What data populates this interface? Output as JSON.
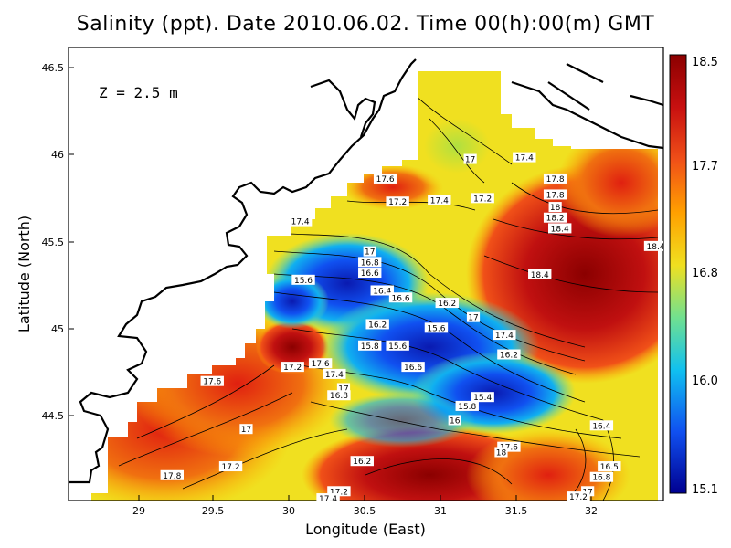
{
  "title": "Salinity (ppt). Date 2010.06.02. Time 00(h):00(m) GMT",
  "depth_label": "Z = 2.5 m",
  "axes": {
    "xlabel": "Longitude (East)",
    "ylabel": "Latitude (North)",
    "xticks": [
      "29",
      "29.5",
      "30",
      "30.5",
      "31",
      "31.5",
      "32"
    ],
    "yticks": [
      "46.5",
      "46",
      "45.5",
      "45",
      "44.5"
    ]
  },
  "colorbar": {
    "labels": [
      "18.5",
      "17.7",
      "16.8",
      "16.0",
      "15.1"
    ],
    "colors": [
      "#8b0000",
      "#e03010",
      "#ffa000",
      "#f0e020",
      "#60e0a0",
      "#10c0f0",
      "#1060f0",
      "#000090"
    ]
  },
  "chart_data": {
    "type": "heatmap",
    "title": "Salinity (ppt). Date 2010.06.02. Time 00(h):00(m) GMT",
    "xlabel": "Longitude (East)",
    "ylabel": "Latitude (North)",
    "xlim": [
      28.6,
      32.45
    ],
    "ylim": [
      44.05,
      46.6
    ],
    "value_range": [
      15.1,
      18.5
    ],
    "contour_labels": [
      {
        "text": "17.4",
        "x": 31.55,
        "y": 45.98
      },
      {
        "text": "17",
        "x": 31.2,
        "y": 45.97
      },
      {
        "text": "17.6",
        "x": 30.65,
        "y": 45.86
      },
      {
        "text": "17.8",
        "x": 31.75,
        "y": 45.86
      },
      {
        "text": "17.2",
        "x": 30.73,
        "y": 45.73
      },
      {
        "text": "17.4",
        "x": 31.0,
        "y": 45.74
      },
      {
        "text": "17.2",
        "x": 31.28,
        "y": 45.75
      },
      {
        "text": "17.8",
        "x": 31.75,
        "y": 45.77
      },
      {
        "text": "18",
        "x": 31.75,
        "y": 45.7
      },
      {
        "text": "18.2",
        "x": 31.75,
        "y": 45.64
      },
      {
        "text": "18.4",
        "x": 31.78,
        "y": 45.58
      },
      {
        "text": "17.4",
        "x": 30.1,
        "y": 45.62
      },
      {
        "text": "17",
        "x": 30.55,
        "y": 45.45
      },
      {
        "text": "16.8",
        "x": 30.55,
        "y": 45.39
      },
      {
        "text": "16.6",
        "x": 30.55,
        "y": 45.33
      },
      {
        "text": "18.4",
        "x": 32.4,
        "y": 45.48
      },
      {
        "text": "18.4",
        "x": 31.65,
        "y": 45.32
      },
      {
        "text": "15.6",
        "x": 30.12,
        "y": 45.29
      },
      {
        "text": "16.4",
        "x": 30.63,
        "y": 45.23
      },
      {
        "text": "16.6",
        "x": 30.75,
        "y": 45.19
      },
      {
        "text": "16.2",
        "x": 31.05,
        "y": 45.16
      },
      {
        "text": "17",
        "x": 31.22,
        "y": 45.08
      },
      {
        "text": "16.2",
        "x": 30.6,
        "y": 45.04
      },
      {
        "text": "15.6",
        "x": 30.98,
        "y": 45.02
      },
      {
        "text": "17.4",
        "x": 31.42,
        "y": 44.98
      },
      {
        "text": "15.8",
        "x": 30.55,
        "y": 44.92
      },
      {
        "text": "15.6",
        "x": 30.73,
        "y": 44.92
      },
      {
        "text": "16.2",
        "x": 31.45,
        "y": 44.87
      },
      {
        "text": "17.2",
        "x": 30.05,
        "y": 44.8
      },
      {
        "text": "17.6",
        "x": 30.23,
        "y": 44.82
      },
      {
        "text": "17.4",
        "x": 30.32,
        "y": 44.76
      },
      {
        "text": "16.6",
        "x": 30.83,
        "y": 44.8
      },
      {
        "text": "17.6",
        "x": 29.53,
        "y": 44.72
      },
      {
        "text": "17",
        "x": 30.38,
        "y": 44.68
      },
      {
        "text": "16.8",
        "x": 30.35,
        "y": 44.64
      },
      {
        "text": "15.4",
        "x": 31.28,
        "y": 44.63
      },
      {
        "text": "15.8",
        "x": 31.18,
        "y": 44.58
      },
      {
        "text": "16",
        "x": 31.1,
        "y": 44.5
      },
      {
        "text": "17",
        "x": 29.75,
        "y": 44.45
      },
      {
        "text": "16.4",
        "x": 32.05,
        "y": 44.47
      },
      {
        "text": "17.6",
        "x": 31.45,
        "y": 44.35
      },
      {
        "text": "18",
        "x": 31.4,
        "y": 44.32
      },
      {
        "text": "17.2",
        "x": 29.65,
        "y": 44.24
      },
      {
        "text": "16.2",
        "x": 30.5,
        "y": 44.27
      },
      {
        "text": "16.5",
        "x": 32.1,
        "y": 44.24
      },
      {
        "text": "17.8",
        "x": 29.27,
        "y": 44.19
      },
      {
        "text": "16.8",
        "x": 32.05,
        "y": 44.18
      },
      {
        "text": "17",
        "x": 31.96,
        "y": 44.1
      },
      {
        "text": "17.2",
        "x": 30.35,
        "y": 44.1
      },
      {
        "text": "17.2",
        "x": 31.9,
        "y": 44.07
      },
      {
        "text": "17.4",
        "x": 30.28,
        "y": 44.06
      }
    ]
  }
}
